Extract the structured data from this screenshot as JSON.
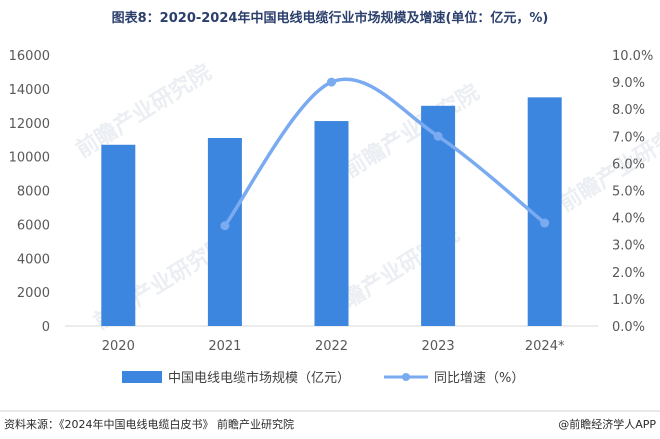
{
  "chart_data": {
    "type": "bar+line",
    "title": "图表8：2020-2024年中国电线电缆行业市场规模及增速(单位：亿元，%)",
    "categories": [
      "2020",
      "2021",
      "2022",
      "2023",
      "2024*"
    ],
    "series": [
      {
        "name": "中国电线电缆市场规模（亿元）",
        "type": "bar",
        "axis": "left",
        "color": "#3d86e0",
        "values": [
          10700,
          11100,
          12100,
          13000,
          13500
        ]
      },
      {
        "name": "同比增速（%）",
        "type": "line",
        "axis": "right",
        "color": "#7aaaf0",
        "values": [
          null,
          3.7,
          9.0,
          7.0,
          3.8
        ]
      }
    ],
    "y_left": {
      "min": 0,
      "max": 16000,
      "step": 2000,
      "ticks": [
        "0",
        "2000",
        "4000",
        "6000",
        "8000",
        "10000",
        "12000",
        "14000",
        "16000"
      ]
    },
    "y_right": {
      "min": 0,
      "max": 10,
      "step": 1,
      "ticks": [
        "0.0%",
        "1.0%",
        "2.0%",
        "3.0%",
        "4.0%",
        "5.0%",
        "6.0%",
        "7.0%",
        "8.0%",
        "9.0%",
        "10.0%"
      ]
    },
    "legend": [
      "中国电线电缆市场规模（亿元）",
      "同比增速（%）"
    ],
    "legend_position": "bottom"
  },
  "footer": {
    "source": "资料来源：《2024年中国电线电缆白皮书》 前瞻产业研究院",
    "brand": "@前瞻经济学人APP"
  },
  "watermark": "前瞻产业研究院",
  "colors": {
    "bar": "#3d86e0",
    "line": "#7aaaf0",
    "axis": "#d9d9d9",
    "title": "#2b3f6c"
  }
}
